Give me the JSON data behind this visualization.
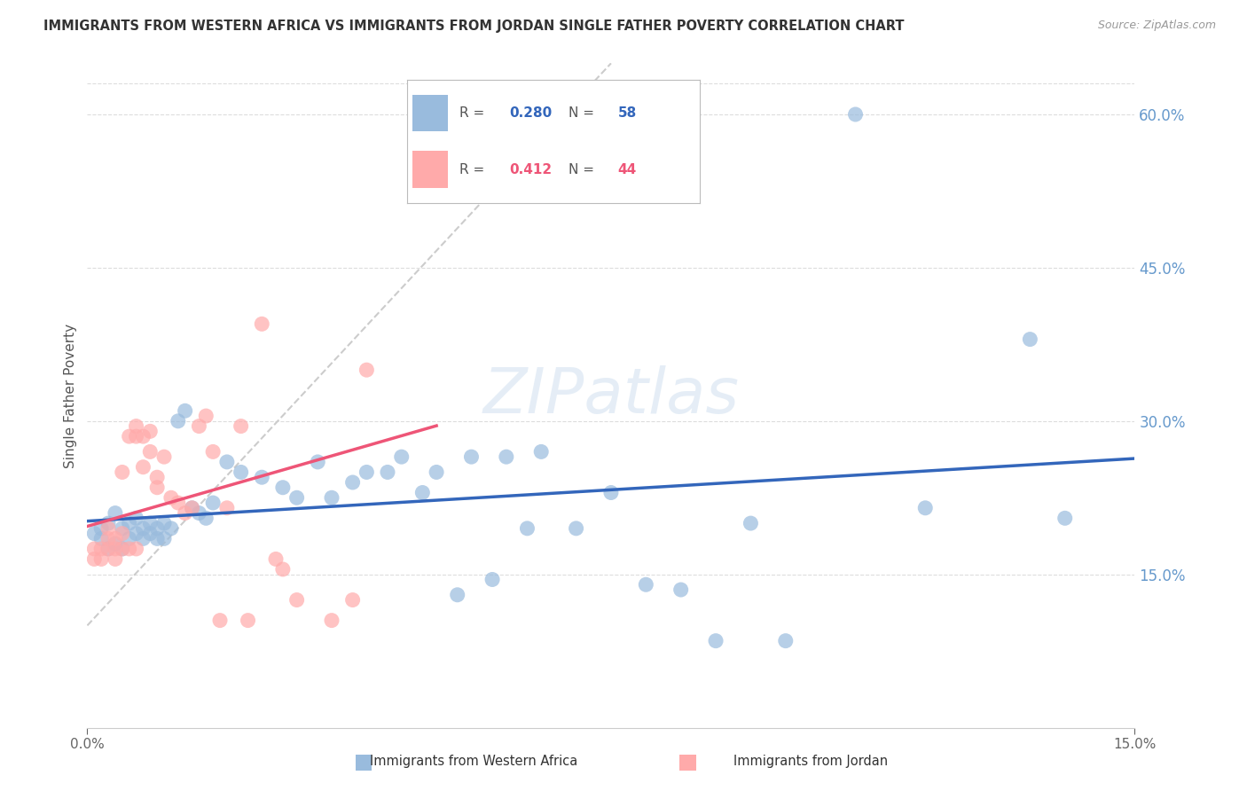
{
  "title": "IMMIGRANTS FROM WESTERN AFRICA VS IMMIGRANTS FROM JORDAN SINGLE FATHER POVERTY CORRELATION CHART",
  "source": "Source: ZipAtlas.com",
  "ylabel_left": "Single Father Poverty",
  "legend_label_blue": "Immigrants from Western Africa",
  "legend_label_pink": "Immigrants from Jordan",
  "R_blue": 0.28,
  "N_blue": 58,
  "R_pink": 0.412,
  "N_pink": 44,
  "color_blue": "#99BBDD",
  "color_pink": "#FFAAAA",
  "color_blue_line": "#3366BB",
  "color_pink_line": "#EE5577",
  "color_diag": "#CCCCCC",
  "xmin": 0.0,
  "xmax": 0.15,
  "ymin": 0.0,
  "ymax": 0.65,
  "yticks": [
    0.15,
    0.3,
    0.45,
    0.6
  ],
  "xtick_positions": [
    0.0,
    0.15
  ],
  "xtick_labels": [
    "0.0%",
    "15.0%"
  ],
  "blue_x": [
    0.001,
    0.002,
    0.002,
    0.003,
    0.003,
    0.004,
    0.004,
    0.005,
    0.005,
    0.006,
    0.006,
    0.007,
    0.007,
    0.008,
    0.008,
    0.009,
    0.009,
    0.01,
    0.01,
    0.011,
    0.011,
    0.012,
    0.013,
    0.014,
    0.015,
    0.016,
    0.017,
    0.018,
    0.02,
    0.022,
    0.025,
    0.028,
    0.03,
    0.033,
    0.035,
    0.038,
    0.04,
    0.043,
    0.045,
    0.048,
    0.05,
    0.053,
    0.055,
    0.058,
    0.06,
    0.063,
    0.065,
    0.07,
    0.075,
    0.08,
    0.085,
    0.09,
    0.095,
    0.1,
    0.11,
    0.12,
    0.135,
    0.14
  ],
  "blue_y": [
    0.19,
    0.185,
    0.195,
    0.175,
    0.2,
    0.18,
    0.21,
    0.175,
    0.195,
    0.185,
    0.2,
    0.19,
    0.205,
    0.185,
    0.195,
    0.19,
    0.2,
    0.185,
    0.195,
    0.2,
    0.185,
    0.195,
    0.3,
    0.31,
    0.215,
    0.21,
    0.205,
    0.22,
    0.26,
    0.25,
    0.245,
    0.235,
    0.225,
    0.26,
    0.225,
    0.24,
    0.25,
    0.25,
    0.265,
    0.23,
    0.25,
    0.13,
    0.265,
    0.145,
    0.265,
    0.195,
    0.27,
    0.195,
    0.23,
    0.14,
    0.135,
    0.085,
    0.2,
    0.085,
    0.6,
    0.215,
    0.38,
    0.205
  ],
  "pink_x": [
    0.001,
    0.001,
    0.002,
    0.002,
    0.003,
    0.003,
    0.003,
    0.004,
    0.004,
    0.004,
    0.005,
    0.005,
    0.005,
    0.006,
    0.006,
    0.007,
    0.007,
    0.007,
    0.008,
    0.008,
    0.009,
    0.009,
    0.01,
    0.01,
    0.011,
    0.012,
    0.013,
    0.014,
    0.015,
    0.016,
    0.017,
    0.018,
    0.019,
    0.02,
    0.022,
    0.023,
    0.025,
    0.027,
    0.028,
    0.03,
    0.035,
    0.038,
    0.04,
    0.05
  ],
  "pink_y": [
    0.165,
    0.175,
    0.165,
    0.175,
    0.175,
    0.185,
    0.195,
    0.165,
    0.175,
    0.185,
    0.175,
    0.19,
    0.25,
    0.175,
    0.285,
    0.175,
    0.285,
    0.295,
    0.255,
    0.285,
    0.29,
    0.27,
    0.245,
    0.235,
    0.265,
    0.225,
    0.22,
    0.21,
    0.215,
    0.295,
    0.305,
    0.27,
    0.105,
    0.215,
    0.295,
    0.105,
    0.395,
    0.165,
    0.155,
    0.125,
    0.105,
    0.125,
    0.35,
    0.54
  ],
  "background_color": "#FFFFFF",
  "grid_color": "#DDDDDD",
  "axis_label_color": "#6699CC",
  "title_color": "#333333"
}
